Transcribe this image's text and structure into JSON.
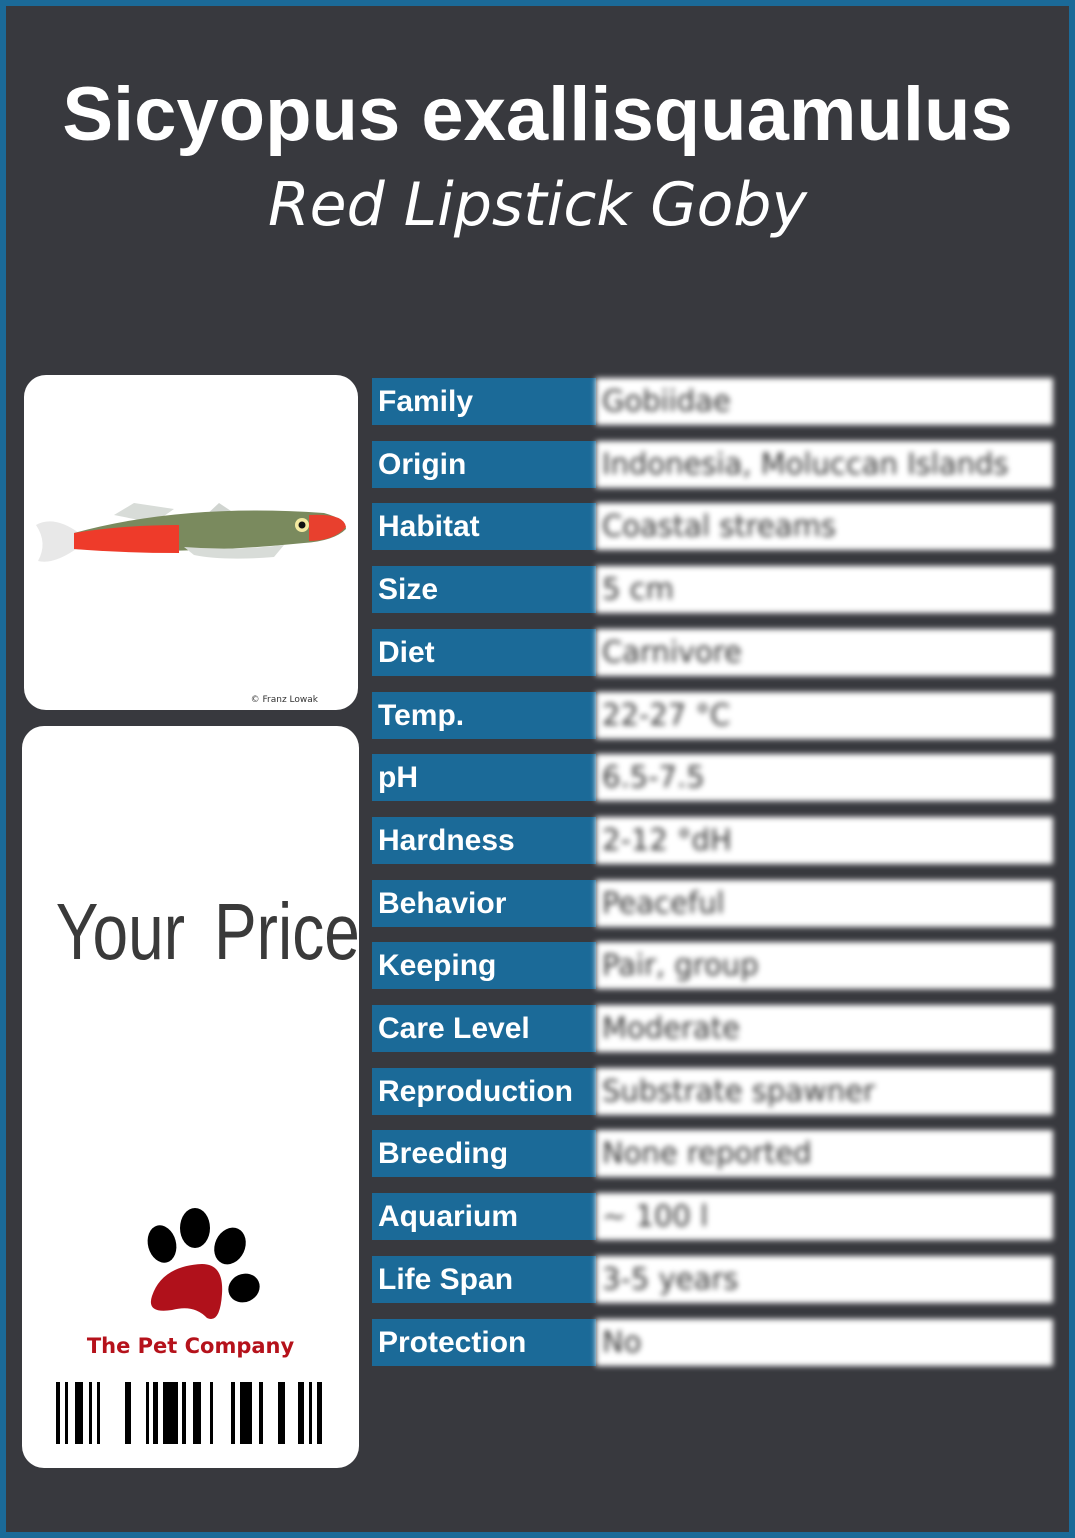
{
  "header": {
    "title": "Sicyopus exallisquamulus",
    "subtitle": "Red Lipstick Goby"
  },
  "photo": {
    "credit": "© Franz Lowak"
  },
  "price": {
    "label": "Your Price"
  },
  "brand": {
    "name": "The Pet Company"
  },
  "colors": {
    "accent": "#1b6a98",
    "background": "#38393e",
    "brand_red": "#b5121b"
  },
  "facts": [
    {
      "label": "Family",
      "value": "Gobiidae"
    },
    {
      "label": "Origin",
      "value": "Indonesia, Moluccan Islands"
    },
    {
      "label": "Habitat",
      "value": "Coastal streams"
    },
    {
      "label": "Size",
      "value": "5 cm"
    },
    {
      "label": "Diet",
      "value": "Carnivore"
    },
    {
      "label": "Temp.",
      "value": "22-27 °C"
    },
    {
      "label": "pH",
      "value": "6.5-7.5"
    },
    {
      "label": "Hardness",
      "value": "2-12 °dH"
    },
    {
      "label": "Behavior",
      "value": "Peaceful"
    },
    {
      "label": "Keeping",
      "value": "Pair, group"
    },
    {
      "label": "Care Level",
      "value": "Moderate"
    },
    {
      "label": "Reproduction",
      "value": "Substrate spawner"
    },
    {
      "label": "Breeding",
      "value": "None reported"
    },
    {
      "label": "Aquarium",
      "value": "~ 100 l"
    },
    {
      "label": "Life Span",
      "value": "3-5 years"
    },
    {
      "label": "Protection",
      "value": "No"
    }
  ]
}
